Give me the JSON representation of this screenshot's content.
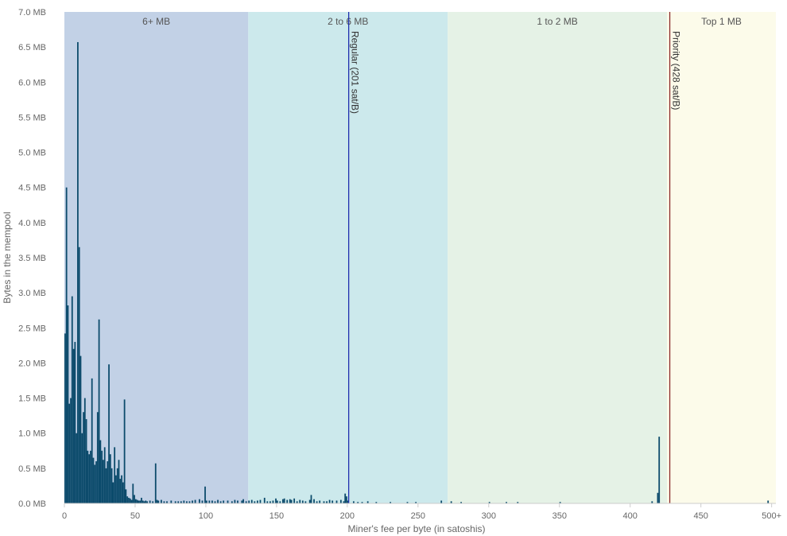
{
  "chart_data": {
    "type": "bar",
    "xlabel": "Miner's fee per byte (in satoshis)",
    "ylabel": "Bytes in the mempool",
    "xlim": [
      0,
      503
    ],
    "ylim": [
      0,
      7.0
    ],
    "y_unit": "MB",
    "x_ticks": [
      {
        "value": 0,
        "label": "0"
      },
      {
        "value": 50,
        "label": "50"
      },
      {
        "value": 100,
        "label": "100"
      },
      {
        "value": 150,
        "label": "150"
      },
      {
        "value": 200,
        "label": "200"
      },
      {
        "value": 250,
        "label": "250"
      },
      {
        "value": 300,
        "label": "300"
      },
      {
        "value": 350,
        "label": "350"
      },
      {
        "value": 400,
        "label": "400"
      },
      {
        "value": 450,
        "label": "450"
      },
      {
        "value": 500,
        "label": "500+"
      }
    ],
    "y_ticks": [
      {
        "value": 0.0,
        "label": "0.0 MB"
      },
      {
        "value": 0.5,
        "label": "0.5 MB"
      },
      {
        "value": 1.0,
        "label": "1.0 MB"
      },
      {
        "value": 1.5,
        "label": "1.5 MB"
      },
      {
        "value": 2.0,
        "label": "2.0 MB"
      },
      {
        "value": 2.5,
        "label": "2.5 MB"
      },
      {
        "value": 3.0,
        "label": "3.0 MB"
      },
      {
        "value": 3.5,
        "label": "3.5 MB"
      },
      {
        "value": 4.0,
        "label": "4.0 MB"
      },
      {
        "value": 4.5,
        "label": "4.5 MB"
      },
      {
        "value": 5.0,
        "label": "5.0 MB"
      },
      {
        "value": 5.5,
        "label": "5.5 MB"
      },
      {
        "value": 6.0,
        "label": "6.0 MB"
      },
      {
        "value": 6.5,
        "label": "6.5 MB"
      },
      {
        "value": 7.0,
        "label": "7.0 MB"
      }
    ],
    "bands": [
      {
        "label": "6+ MB",
        "from": 0,
        "to": 130,
        "color": "#c2d1e6"
      },
      {
        "label": "2 to 6 MB",
        "from": 130,
        "to": 271,
        "color": "#cce9ec"
      },
      {
        "label": "1 to 2 MB",
        "from": 271,
        "to": 426,
        "color": "#e5f2e6"
      },
      {
        "label": "Top 1 MB",
        "from": 426,
        "to": 503,
        "color": "#fcfbea"
      }
    ],
    "reference_lines": [
      {
        "label": "Regular (201 sat/B)",
        "value": 201,
        "color": "#1f2fae"
      },
      {
        "label": "Priority (428 sat/B)",
        "value": 428,
        "color": "#8a2b2b"
      }
    ],
    "bar_color": "#0b4a6b",
    "bars": [
      [
        0,
        2.42
      ],
      [
        1,
        4.5
      ],
      [
        2,
        2.82
      ],
      [
        3,
        1.42
      ],
      [
        4,
        1.5
      ],
      [
        5,
        2.95
      ],
      [
        6,
        2.2
      ],
      [
        7,
        2.3
      ],
      [
        8,
        1.0
      ],
      [
        9,
        6.57
      ],
      [
        10,
        3.65
      ],
      [
        11,
        2.1
      ],
      [
        12,
        1.0
      ],
      [
        13,
        1.3
      ],
      [
        14,
        1.5
      ],
      [
        15,
        1.2
      ],
      [
        16,
        0.75
      ],
      [
        17,
        0.7
      ],
      [
        18,
        0.75
      ],
      [
        19,
        1.78
      ],
      [
        20,
        0.65
      ],
      [
        21,
        0.55
      ],
      [
        22,
        0.6
      ],
      [
        23,
        1.3
      ],
      [
        24,
        2.62
      ],
      [
        25,
        0.9
      ],
      [
        26,
        0.75
      ],
      [
        27,
        0.62
      ],
      [
        28,
        0.8
      ],
      [
        29,
        0.5
      ],
      [
        30,
        0.6
      ],
      [
        31,
        1.98
      ],
      [
        32,
        0.7
      ],
      [
        33,
        0.5
      ],
      [
        34,
        0.3
      ],
      [
        35,
        0.8
      ],
      [
        36,
        0.4
      ],
      [
        37,
        0.5
      ],
      [
        38,
        0.62
      ],
      [
        39,
        0.35
      ],
      [
        40,
        0.4
      ],
      [
        41,
        0.3
      ],
      [
        42,
        1.48
      ],
      [
        43,
        0.2
      ],
      [
        44,
        0.1
      ],
      [
        45,
        0.08
      ],
      [
        46,
        0.07
      ],
      [
        47,
        0.05
      ],
      [
        48,
        0.28
      ],
      [
        49,
        0.12
      ],
      [
        50,
        0.06
      ],
      [
        51,
        0.05
      ],
      [
        52,
        0.04
      ],
      [
        53,
        0.04
      ],
      [
        54,
        0.08
      ],
      [
        55,
        0.04
      ],
      [
        56,
        0.03
      ],
      [
        57,
        0.04
      ],
      [
        58,
        0.03
      ],
      [
        60,
        0.04
      ],
      [
        62,
        0.03
      ],
      [
        64,
        0.57
      ],
      [
        65,
        0.05
      ],
      [
        66,
        0.04
      ],
      [
        68,
        0.05
      ],
      [
        70,
        0.03
      ],
      [
        72,
        0.03
      ],
      [
        75,
        0.04
      ],
      [
        78,
        0.03
      ],
      [
        80,
        0.03
      ],
      [
        82,
        0.03
      ],
      [
        84,
        0.04
      ],
      [
        86,
        0.03
      ],
      [
        88,
        0.03
      ],
      [
        90,
        0.04
      ],
      [
        92,
        0.05
      ],
      [
        95,
        0.06
      ],
      [
        97,
        0.04
      ],
      [
        99,
        0.24
      ],
      [
        100,
        0.04
      ],
      [
        102,
        0.04
      ],
      [
        104,
        0.04
      ],
      [
        106,
        0.03
      ],
      [
        108,
        0.05
      ],
      [
        110,
        0.03
      ],
      [
        112,
        0.04
      ],
      [
        115,
        0.04
      ],
      [
        118,
        0.03
      ],
      [
        120,
        0.05
      ],
      [
        122,
        0.04
      ],
      [
        125,
        0.04
      ],
      [
        126,
        0.06
      ],
      [
        128,
        0.03
      ],
      [
        130,
        0.04
      ],
      [
        132,
        0.05
      ],
      [
        134,
        0.03
      ],
      [
        136,
        0.04
      ],
      [
        138,
        0.05
      ],
      [
        141,
        0.08
      ],
      [
        143,
        0.03
      ],
      [
        145,
        0.03
      ],
      [
        147,
        0.04
      ],
      [
        149,
        0.07
      ],
      [
        150,
        0.04
      ],
      [
        152,
        0.03
      ],
      [
        154,
        0.06
      ],
      [
        155,
        0.07
      ],
      [
        157,
        0.05
      ],
      [
        159,
        0.06
      ],
      [
        160,
        0.05
      ],
      [
        162,
        0.07
      ],
      [
        164,
        0.03
      ],
      [
        166,
        0.05
      ],
      [
        168,
        0.04
      ],
      [
        170,
        0.03
      ],
      [
        173,
        0.05
      ],
      [
        174,
        0.12
      ],
      [
        176,
        0.06
      ],
      [
        178,
        0.03
      ],
      [
        180,
        0.04
      ],
      [
        183,
        0.03
      ],
      [
        185,
        0.03
      ],
      [
        187,
        0.05
      ],
      [
        189,
        0.04
      ],
      [
        192,
        0.04
      ],
      [
        195,
        0.05
      ],
      [
        197,
        0.03
      ],
      [
        198,
        0.14
      ],
      [
        199,
        0.1
      ],
      [
        200,
        0.04
      ],
      [
        204,
        0.03
      ],
      [
        207,
        0.02
      ],
      [
        210,
        0.02
      ],
      [
        214,
        0.03
      ],
      [
        220,
        0.02
      ],
      [
        230,
        0.02
      ],
      [
        242,
        0.02
      ],
      [
        248,
        0.02
      ],
      [
        266,
        0.04
      ],
      [
        273,
        0.03
      ],
      [
        280,
        0.02
      ],
      [
        300,
        0.02
      ],
      [
        312,
        0.02
      ],
      [
        320,
        0.02
      ],
      [
        350,
        0.02
      ],
      [
        415,
        0.03
      ],
      [
        419,
        0.15
      ],
      [
        420,
        0.95
      ],
      [
        497,
        0.04
      ]
    ]
  }
}
